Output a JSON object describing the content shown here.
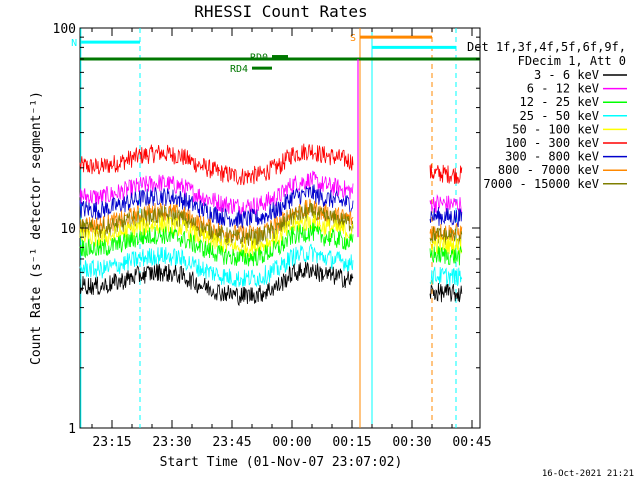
{
  "chart_data": {
    "type": "line",
    "title": "RHESSI Count Rates",
    "xlabel": "Start Time (01-Nov-07 23:07:02)",
    "ylabel": "Count Rate (s⁻¹ detector segment⁻¹)",
    "yscale": "log",
    "ylim": [
      1,
      100
    ],
    "xlim_minutes_from_start": [
      0,
      100
    ],
    "y_ticks": [
      "1",
      "10",
      "100"
    ],
    "x_ticks": [
      {
        "label": "23:15",
        "t": 8
      },
      {
        "label": "23:30",
        "t": 23
      },
      {
        "label": "23:45",
        "t": 38
      },
      {
        "label": "00:00",
        "t": 53
      },
      {
        "label": "00:15",
        "t": 68
      },
      {
        "label": "00:30",
        "t": 83
      },
      {
        "label": "00:45",
        "t": 98
      }
    ],
    "legend_header": [
      "Det 1f,3f,4f,5f,6f,9f,",
      "FDecim 1, Att 0"
    ],
    "series": [
      {
        "name": "3 - 6 keV",
        "color": "#000000",
        "base": 5.2
      },
      {
        "name": "6 - 12 keV",
        "color": "#ff00ff",
        "base": 14.5
      },
      {
        "name": "12 - 25 keV",
        "color": "#00ff00",
        "base": 8.0
      },
      {
        "name": "25 - 50 keV",
        "color": "#00ffff",
        "base": 6.3
      },
      {
        "name": "50 - 100 keV",
        "color": "#ffff00",
        "base": 9.0
      },
      {
        "name": "100 - 300 keV",
        "color": "#ff0000",
        "base": 20.5
      },
      {
        "name": "300 - 800 keV",
        "color": "#0000cc",
        "base": 12.5
      },
      {
        "name": "800 - 7000 keV",
        "color": "#ff8800",
        "base": 10.5
      },
      {
        "name": "7000 - 15000 keV",
        "color": "#7f7f00",
        "base": 10.0
      }
    ],
    "segments_minutes": [
      [
        0,
        68.3
      ],
      [
        87.5,
        95.5
      ]
    ],
    "shape_profile": [
      [
        0,
        1.0
      ],
      [
        5,
        0.98
      ],
      [
        10,
        1.04
      ],
      [
        15,
        1.12
      ],
      [
        20,
        1.16
      ],
      [
        25,
        1.12
      ],
      [
        30,
        1.0
      ],
      [
        35,
        0.92
      ],
      [
        40,
        0.88
      ],
      [
        45,
        0.9
      ],
      [
        50,
        1.0
      ],
      [
        53,
        1.14
      ],
      [
        58,
        1.2
      ],
      [
        60,
        1.14
      ],
      [
        64,
        1.1
      ],
      [
        68.3,
        1.05
      ],
      [
        87.5,
        0.92
      ],
      [
        95.5,
        0.9
      ]
    ],
    "annotations": {
      "vertical_lines": [
        {
          "t": 0.2,
          "color": "#00ffff",
          "style": "solid"
        },
        {
          "t": 15,
          "color": "#00ffff",
          "style": "dashed"
        },
        {
          "t": 70,
          "color": "#ff8800",
          "style": "solid"
        },
        {
          "t": 73,
          "color": "#00ffff",
          "style": "solid"
        },
        {
          "t": 88,
          "color": "#ff8800",
          "style": "dashed"
        },
        {
          "t": 94,
          "color": "#00ffff",
          "style": "dashed"
        }
      ],
      "bars": [
        {
          "label": "N",
          "color": "#00ffff",
          "t0": 0.3,
          "t1": 15,
          "y": 85
        },
        {
          "label": "",
          "color": "#00ffff",
          "t0": 73,
          "t1": 94,
          "y": 80
        },
        {
          "label": "S",
          "color": "#ff8800",
          "t0": 70,
          "t1": 88,
          "y": 90
        },
        {
          "label": "",
          "color": "#007700",
          "t0": 0,
          "t1": 100,
          "y": 70
        },
        {
          "label": "RD0",
          "color": "#007700",
          "t0": 48,
          "t1": 52,
          "y": 72
        },
        {
          "label": "RD4",
          "color": "#007700",
          "t0": 43,
          "t1": 48,
          "y": 63
        }
      ]
    }
  },
  "footer_timestamp": "16-Oct-2021 21:21"
}
